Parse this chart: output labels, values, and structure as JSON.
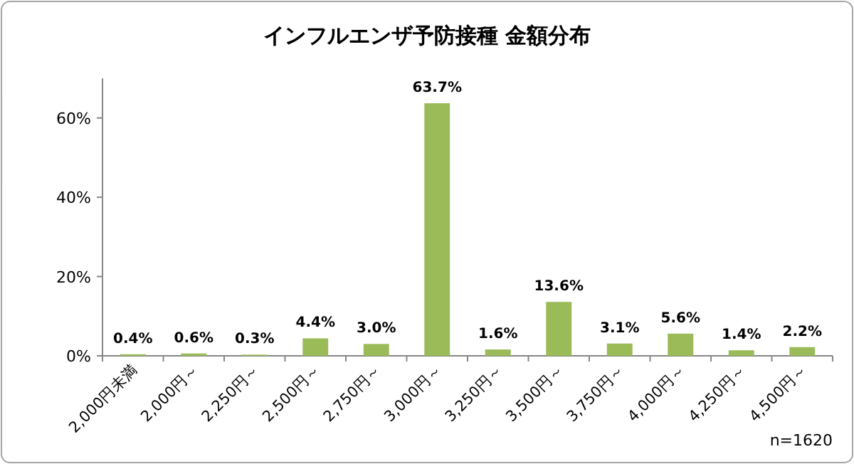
{
  "chart_data": {
    "type": "bar",
    "title": "インフルエンザ予防接種  金額分布",
    "categories": [
      "2,000円未満",
      "2,000円～",
      "2,250円～",
      "2,500円～",
      "2,750円～",
      "3,000円～",
      "3,250円～",
      "3,500円～",
      "3,750円～",
      "4,000円～",
      "4,250円～",
      "4,500円～"
    ],
    "values": [
      0.4,
      0.6,
      0.3,
      4.4,
      3.0,
      63.7,
      1.6,
      13.6,
      3.1,
      5.6,
      1.4,
      2.2
    ],
    "value_labels": [
      "0.4%",
      "0.6%",
      "0.3%",
      "4.4%",
      "3.0%",
      "63.7%",
      "1.6%",
      "13.6%",
      "3.1%",
      "5.6%",
      "1.4%",
      "2.2%"
    ],
    "color": "#9bbb59",
    "ylim": [
      0,
      70
    ],
    "yticks": [
      {
        "value": 0,
        "label": "0%"
      },
      {
        "value": 20,
        "label": "20%"
      },
      {
        "value": 40,
        "label": "40%"
      },
      {
        "value": 60,
        "label": "60%"
      }
    ],
    "grid": false,
    "annotations": [
      "n=1620"
    ]
  }
}
